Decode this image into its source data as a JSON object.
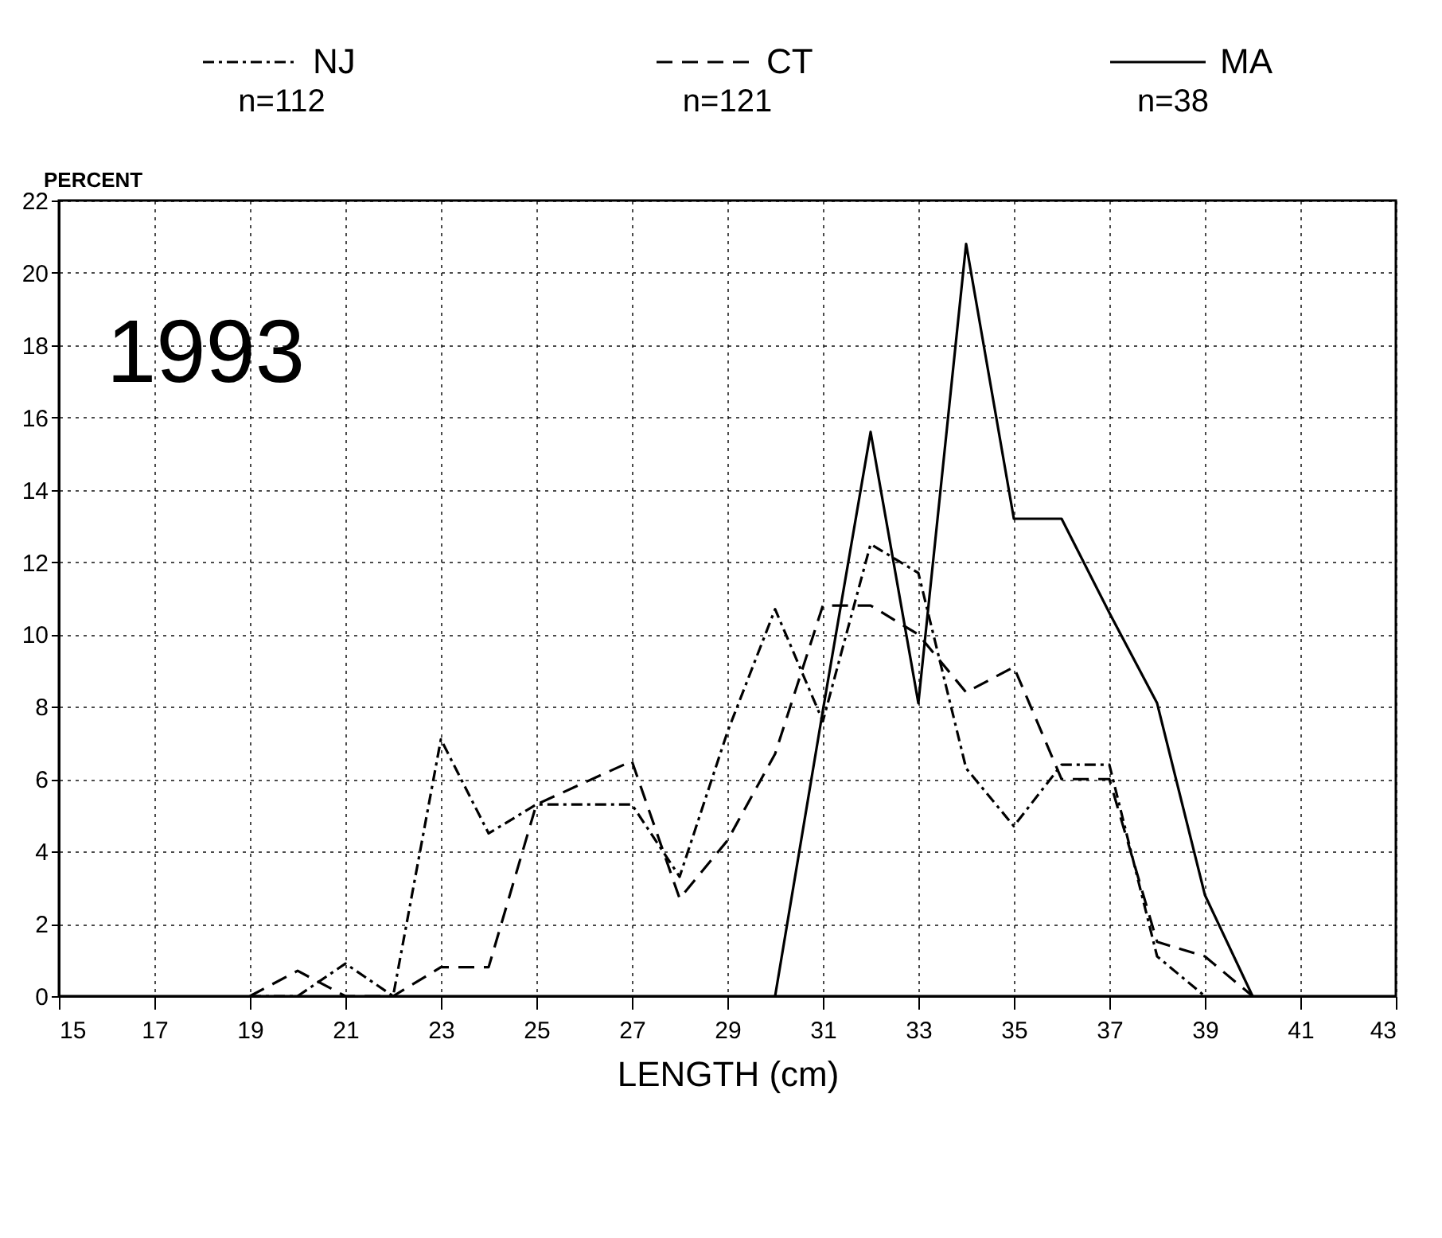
{
  "chart_data": {
    "type": "line",
    "xlabel": "LENGTH (cm)",
    "ylabel": "PERCENT",
    "x": [
      19,
      20,
      21,
      22,
      23,
      24,
      25,
      26,
      27,
      28,
      29,
      30,
      31,
      32,
      33,
      34,
      35,
      36,
      37,
      38,
      39,
      40
    ],
    "series": [
      {
        "name": "NJ",
        "color": "#000000",
        "line_style": "dotted",
        "values": [
          0,
          0,
          0.9,
          0,
          7.1,
          4.5,
          5.3,
          5.3,
          5.3,
          3.3,
          7.3,
          10.7,
          7.6,
          12.5,
          11.7,
          6.3,
          4.7,
          6.4,
          6.4,
          1.1,
          0,
          null
        ]
      },
      {
        "name": "CT",
        "color": "#000000",
        "line_style": "dashed",
        "values": [
          0,
          0.7,
          0,
          0,
          0.8,
          0.8,
          5.3,
          5.9,
          6.5,
          2.7,
          4.3,
          6.7,
          10.8,
          10.8,
          10.0,
          8.4,
          9.1,
          6.0,
          6.0,
          1.5,
          1.1,
          0
        ]
      },
      {
        "name": "MA",
        "color": "#000000",
        "line_style": "solid",
        "values": [
          null,
          null,
          null,
          null,
          null,
          null,
          null,
          null,
          null,
          null,
          null,
          0,
          7.9,
          15.6,
          8.1,
          20.8,
          13.2,
          13.2,
          10.6,
          8.1,
          2.8,
          0
        ]
      }
    ],
    "annotations": [
      "n=112",
      "n=121",
      "n=38",
      "1993"
    ],
    "xlim": [
      15,
      43
    ],
    "xticks": [
      15,
      17,
      19,
      21,
      23,
      25,
      27,
      29,
      31,
      33,
      35,
      37,
      39,
      41,
      43
    ],
    "ylim": [
      0,
      22
    ],
    "yticks": [
      0,
      2,
      4,
      6,
      8,
      10,
      12,
      14,
      16,
      18,
      20,
      22
    ],
    "grid": true,
    "legend": "top",
    "marker": "none"
  }
}
